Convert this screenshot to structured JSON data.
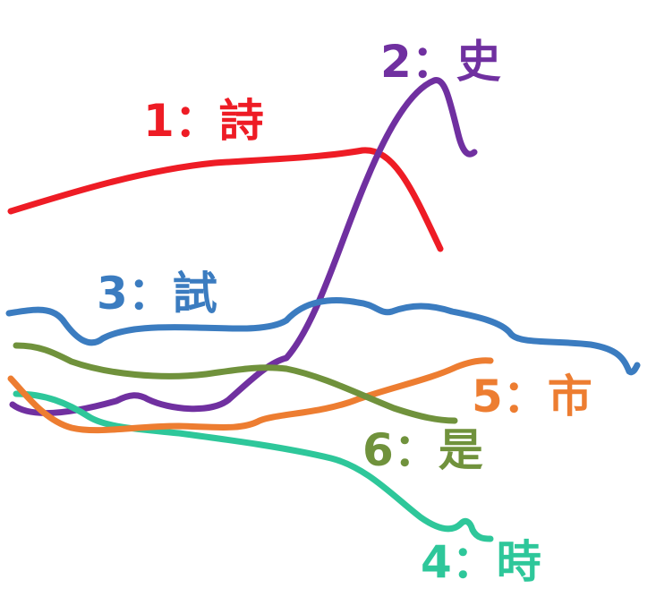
{
  "colors": {
    "poetry": "#ee1c25",
    "history": "#7030a0",
    "exam": "#3b7cc0",
    "time": "#2ec79a",
    "city": "#ed7d31",
    "is": "#70923c"
  },
  "labels": {
    "poetry": "1：詩",
    "history": "2：史",
    "exam": "3：試",
    "time": "4：時",
    "city": "5：市",
    "is": "6：是"
  }
}
